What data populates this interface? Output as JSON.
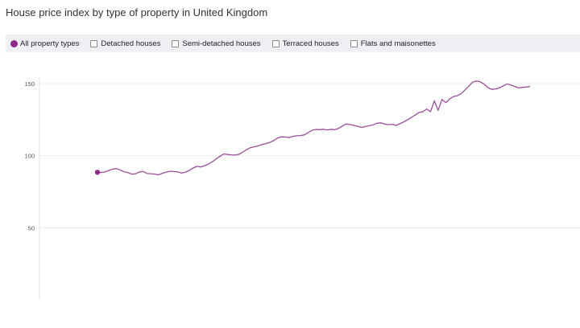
{
  "page": {
    "title": "House price index by type of property in United Kingdom"
  },
  "filters": [
    {
      "label": "All property types",
      "selected": true,
      "color": "#8c2b86"
    },
    {
      "label": "Detached houses",
      "selected": false
    },
    {
      "label": "Semi-detached houses",
      "selected": false
    },
    {
      "label": "Terraced houses",
      "selected": false
    },
    {
      "label": "Flats and maisonettes",
      "selected": false
    }
  ],
  "chart_data": {
    "type": "line",
    "title": "House price index by type of property in United Kingdom",
    "xlabel": "",
    "ylabel": "",
    "ylim": [
      0,
      150
    ],
    "yticks": [
      50,
      100,
      150
    ],
    "grid": true,
    "series": [
      {
        "name": "All property types",
        "color": "#9b4c9a",
        "marker_color": "#8c2b86",
        "values": [
          88.5,
          88.3,
          88.8,
          89.8,
          90.8,
          91.0,
          90.0,
          88.8,
          88.2,
          87.2,
          87.5,
          88.8,
          89.0,
          87.6,
          87.5,
          87.2,
          86.8,
          87.8,
          88.6,
          89.2,
          89.0,
          88.7,
          88.0,
          88.6,
          89.8,
          91.5,
          92.6,
          92.2,
          93.1,
          94.2,
          95.8,
          97.8,
          99.6,
          101.2,
          100.8,
          100.6,
          100.4,
          101.0,
          102.6,
          104.2,
          105.6,
          106.2,
          106.8,
          107.8,
          108.4,
          109.2,
          110.4,
          112.2,
          113.1,
          113.0,
          112.6,
          113.4,
          113.8,
          114.0,
          114.4,
          116.0,
          117.5,
          118.2,
          118.1,
          118.4,
          117.8,
          118.4,
          118.0,
          119.0,
          120.6,
          122.0,
          121.6,
          121.0,
          120.3,
          119.6,
          120.2,
          120.8,
          121.4,
          122.5,
          122.8,
          122.0,
          121.5,
          121.8,
          121.0,
          122.2,
          123.4,
          124.9,
          126.6,
          128.2,
          130.0,
          130.5,
          132.4,
          130.5,
          138.0,
          131.5,
          139.0,
          136.8,
          139.4,
          141.0,
          141.6,
          143.0,
          145.6,
          148.2,
          151.0,
          151.8,
          151.2,
          149.6,
          147.2,
          146.0,
          146.3,
          147.0,
          148.5,
          149.8,
          149.0,
          148.0,
          147.0,
          147.4,
          147.6,
          148.0
        ]
      }
    ]
  }
}
